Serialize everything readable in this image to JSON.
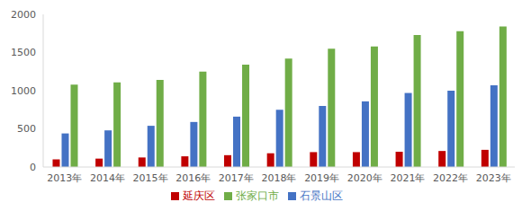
{
  "chart_data": {
    "type": "bar",
    "categories": [
      "2013年",
      "2014年",
      "2015年",
      "2016年",
      "2017年",
      "2018年",
      "2019年",
      "2020年",
      "2021年",
      "2022年",
      "2023年"
    ],
    "series": [
      {
        "name": "延庆区",
        "color": "#c00000",
        "values": [
          100,
          110,
          125,
          140,
          155,
          180,
          195,
          195,
          200,
          210,
          225
        ]
      },
      {
        "name": "石景山区",
        "color": "#4472c4",
        "values": [
          440,
          480,
          540,
          590,
          660,
          750,
          800,
          860,
          970,
          1000,
          1070
        ]
      },
      {
        "name": "张家口市",
        "color": "#70ad47",
        "values": [
          1080,
          1110,
          1140,
          1250,
          1340,
          1420,
          1550,
          1580,
          1730,
          1780,
          1840
        ]
      }
    ],
    "ylim": [
      0,
      2000
    ],
    "yticks": [
      0,
      500,
      1000,
      1500,
      2000
    ],
    "grid": false,
    "legend": "bottom"
  }
}
